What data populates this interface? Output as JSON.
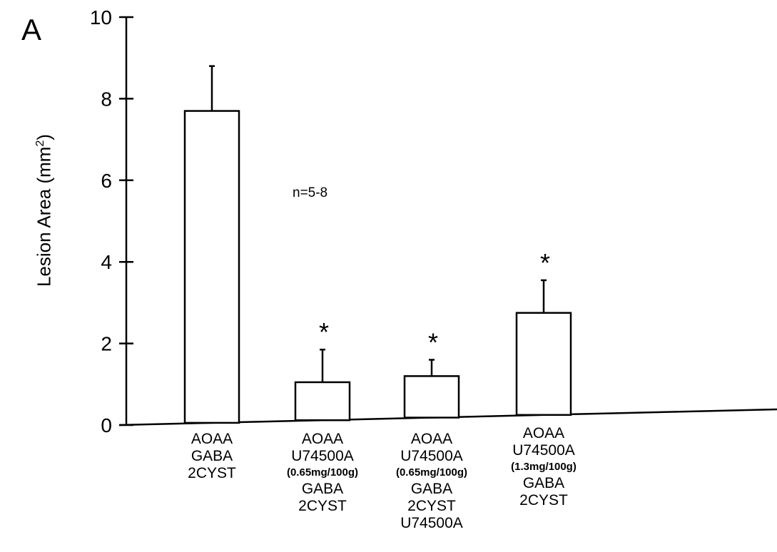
{
  "figure": {
    "panel_label": "A",
    "annotation": "n=5-8"
  },
  "chart_data": {
    "type": "bar",
    "title": "",
    "xlabel": "",
    "ylabel": "Lesion Area (mm",
    "ylabel_superscript": "2",
    "ylabel_suffix": ")",
    "ylim": [
      0,
      10
    ],
    "yticks": [
      "0",
      "2",
      "4",
      "6",
      "8",
      "10"
    ],
    "grid": false,
    "categories": [
      [
        "AOAA",
        "GABA",
        "2CYST"
      ],
      [
        "AOAA",
        "U74500A",
        "(0.65mg/100g)",
        "GABA",
        "2CYST"
      ],
      [
        "AOAA",
        "U74500A",
        "(0.65mg/100g)",
        "GABA",
        "2CYST",
        "U74500A"
      ],
      [
        "AOAA",
        "U74500A",
        "(1.3mg/100g)",
        "GABA",
        "2CYST"
      ]
    ],
    "values": [
      7.7,
      1.05,
      1.2,
      2.75
    ],
    "error_upper": [
      8.8,
      1.85,
      1.6,
      3.55
    ],
    "significance": [
      "",
      "*",
      "*",
      "*"
    ],
    "colors": {
      "bar_fill": "#ffffff",
      "stroke": "#000000"
    }
  }
}
